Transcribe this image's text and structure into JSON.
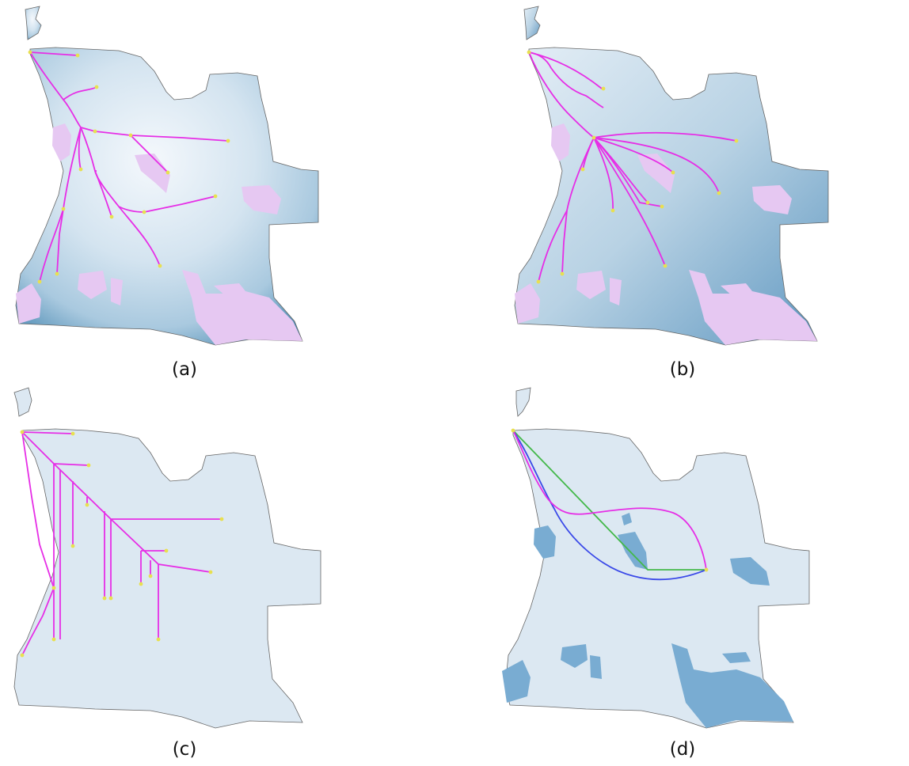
{
  "figure": {
    "panels": [
      {
        "id": "a",
        "caption": "(a)",
        "background": "elevation-gradient",
        "route_style": "curved-branching"
      },
      {
        "id": "b",
        "caption": "(b)",
        "background": "elevation-gradient",
        "route_style": "curved-branching"
      },
      {
        "id": "c",
        "caption": "(c)",
        "background": "flat",
        "route_style": "orthogonal-branching"
      },
      {
        "id": "d",
        "caption": "(d)",
        "background": "flat",
        "route_style": "single-path-comparison"
      }
    ]
  },
  "colors": {
    "land_light": "#dce8f2",
    "gradient_light": "#e8f1f8",
    "gradient_dark": "#3f82ad",
    "exclusion_zone_pink": "#e6c8f2",
    "exclusion_zone_blue": "#79acd2",
    "route_magenta": "#e62ee6",
    "route_blue": "#3a49e8",
    "route_green": "#43b84a",
    "node_yellow": "#e8e050",
    "border": "#666666"
  },
  "legend_icons": {
    "node": "point-marker-icon",
    "route": "route-line-icon",
    "zone": "exclusion-zone-icon"
  }
}
